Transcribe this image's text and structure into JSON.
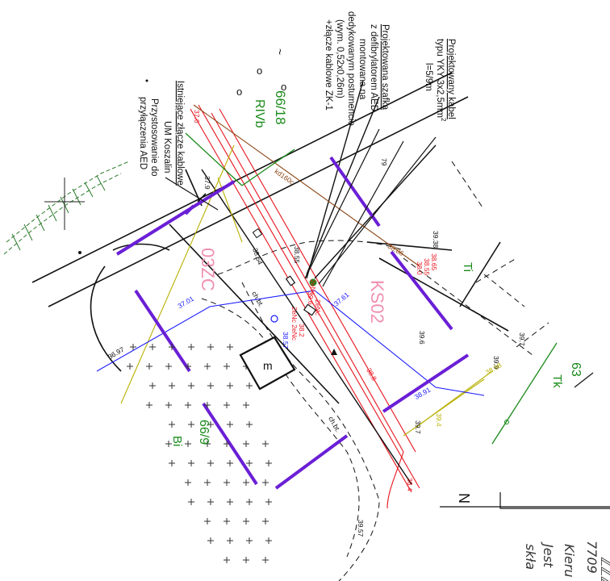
{
  "notes": {
    "cable": {
      "line1": "Projektowany kabel",
      "line2": "typu YKY 3x2,5mm",
      "sup": "2",
      "line3": "l=5/9m"
    },
    "cabinet": {
      "line1": "Projektowana szafka",
      "line2": "z defibrylatorem AED",
      "line3": "montowana na",
      "line4": "dedykowanym postumencie",
      "line5": "(wym.       0,52x0,26m)",
      "line6": "+złącze kablowe ZK-1"
    },
    "existing": {
      "line1": "Istniejące złącze kablowe",
      "line2": "UM Koszalin",
      "line3": "Przystosowanie do",
      "line4": "przyłączenia AED"
    }
  },
  "parcels": {
    "p1": "66/18",
    "p1_class": "RIVb",
    "p2": "66/9",
    "p2_class": "Bi",
    "p3": "63",
    "p3_class": "Tk",
    "p4_class": "Ti"
  },
  "zones": {
    "z1": "KS02",
    "z2": "03ZC"
  },
  "elevations": {
    "e1": "37.0",
    "e2": "37.9",
    "e3": "38.54",
    "e4": "38.55",
    "e5": "39.38",
    "e6": "39.6",
    "e7": "39.7",
    "e8": "39.9",
    "e9": "39.7",
    "e10": "39.57",
    "e11": "38.8",
    "e12": "38.4",
    "e13": "38.2",
    "e14": "79",
    "e15": "39.6",
    "e16": "36.97",
    "e17": "37.01",
    "e18": "37.61",
    "e19": "38.91",
    "e20": "38.98",
    "e21": "38.86",
    "e22": "38.0",
    "e23": "39.4"
  },
  "tags": {
    "kd": "kd160c",
    "chbt1": "ch.bt.",
    "chbt2": "ch.bt.",
    "m": "m",
    "n1": "2eNc",
    "n2": "2eNc 2eNc",
    "n3": "2eNc",
    "n4": "38.57",
    "n5": "38.65",
    "n6": "38.55",
    "north": "N"
  },
  "legend_fragments": {
    "a": "Kieru",
    "b": "Jest",
    "c": "skła",
    "d": "7709",
    "e": "ℤℤℤ"
  },
  "colors": {
    "cable_red": "#e8141e",
    "blue_line": "#1a1aff",
    "brown_line": "#8b4513",
    "olive_line": "#b8b000",
    "parcel_green": "#1a8a1a",
    "purple_bar": "#6a1fd6",
    "zone_pink": "#f090b0"
  }
}
